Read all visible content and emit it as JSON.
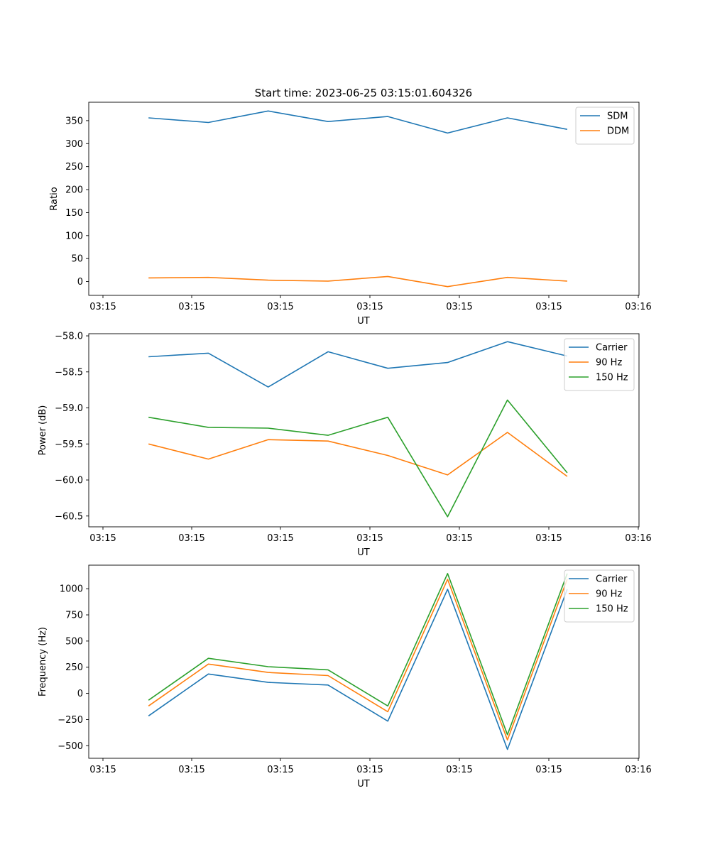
{
  "figure": {
    "title": "Start time: 2023-06-25 03:15:01.604326"
  },
  "chart_data": [
    {
      "type": "line",
      "title": "Start time: 2023-06-25 03:15:01.604326",
      "xlabel": "UT",
      "ylabel": "Ratio",
      "x_tick_labels": [
        "03:15",
        "03:15",
        "03:15",
        "03:15",
        "03:15",
        "03:15",
        "03:16"
      ],
      "x": [
        1,
        2,
        3,
        4,
        5,
        6,
        7,
        8
      ],
      "y_ticks": [
        0,
        50,
        100,
        150,
        200,
        250,
        300,
        350
      ],
      "ylim": [
        -30,
        390
      ],
      "xlim": [
        0,
        9.2
      ],
      "grid": false,
      "legend_position": "top-right",
      "series": [
        {
          "name": "SDM",
          "color": "#1f77b4",
          "values": [
            356,
            346,
            371,
            348,
            359,
            323,
            356,
            331
          ]
        },
        {
          "name": "DDM",
          "color": "#ff7f0e",
          "values": [
            8,
            9,
            3,
            1,
            11,
            -11,
            9,
            1
          ]
        }
      ]
    },
    {
      "type": "line",
      "xlabel": "UT",
      "ylabel": "Power (dB)",
      "x_tick_labels": [
        "03:15",
        "03:15",
        "03:15",
        "03:15",
        "03:15",
        "03:15",
        "03:16"
      ],
      "x": [
        1,
        2,
        3,
        4,
        5,
        6,
        7,
        8
      ],
      "y_ticks": [
        -58.0,
        -58.5,
        -59.0,
        -59.5,
        -60.0,
        -60.5
      ],
      "y_tick_labels": [
        "−58.0",
        "−58.5",
        "−59.0",
        "−59.5",
        "−60.0",
        "−60.5"
      ],
      "ylim": [
        -60.65,
        -57.97
      ],
      "xlim": [
        0,
        9.2
      ],
      "grid": false,
      "legend_position": "top-right",
      "series": [
        {
          "name": "Carrier",
          "color": "#1f77b4",
          "values": [
            -58.29,
            -58.24,
            -58.71,
            -58.22,
            -58.45,
            -58.37,
            -58.08,
            -58.28
          ]
        },
        {
          "name": "90 Hz",
          "color": "#ff7f0e",
          "values": [
            -59.5,
            -59.71,
            -59.44,
            -59.46,
            -59.66,
            -59.93,
            -59.34,
            -59.95
          ]
        },
        {
          "name": "150 Hz",
          "color": "#2ca02c",
          "values": [
            -59.13,
            -59.27,
            -59.28,
            -59.38,
            -59.13,
            -60.51,
            -58.89,
            -59.9
          ]
        }
      ]
    },
    {
      "type": "line",
      "xlabel": "UT",
      "ylabel": "Frequency (Hz)",
      "x_tick_labels": [
        "03:15",
        "03:15",
        "03:15",
        "03:15",
        "03:15",
        "03:15",
        "03:16"
      ],
      "x": [
        1,
        2,
        3,
        4,
        5,
        6,
        7,
        8
      ],
      "y_ticks": [
        -500,
        -250,
        0,
        250,
        500,
        750,
        1000
      ],
      "y_tick_labels": [
        "−500",
        "−250",
        "0",
        "250",
        "500",
        "750",
        "1000"
      ],
      "ylim": [
        -620,
        1225
      ],
      "xlim": [
        0,
        9.2
      ],
      "grid": false,
      "legend_position": "top-right",
      "series": [
        {
          "name": "Carrier",
          "color": "#1f77b4",
          "values": [
            -215,
            185,
            105,
            80,
            -265,
            995,
            -535,
            995
          ]
        },
        {
          "name": "90 Hz",
          "color": "#ff7f0e",
          "values": [
            -120,
            280,
            200,
            170,
            -175,
            1090,
            -445,
            1090
          ]
        },
        {
          "name": "150 Hz",
          "color": "#2ca02c",
          "values": [
            -65,
            335,
            255,
            225,
            -120,
            1145,
            -395,
            1145
          ]
        }
      ]
    }
  ]
}
